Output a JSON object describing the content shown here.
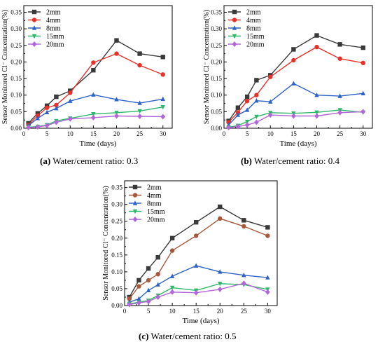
{
  "chart_data": [
    {
      "type": "line",
      "xlabel": "Time (days)",
      "ylabel": "Sensor Monitored  Cl⁻ Concentration(%)",
      "xlim": [
        0,
        32
      ],
      "ylim": [
        0,
        0.37
      ],
      "xticks": [
        0,
        5,
        10,
        15,
        20,
        25,
        30
      ],
      "yticks": [
        0.0,
        0.05,
        0.1,
        0.15,
        0.2,
        0.25,
        0.3,
        0.35
      ],
      "legend_position": "top-left",
      "caption_label": "(a)",
      "caption_text": "Water/cement ratio: 0.3",
      "series": [
        {
          "name": "2mm",
          "x": [
            1,
            3,
            5,
            7,
            10,
            15,
            20,
            25,
            30
          ],
          "values": [
            0.015,
            0.045,
            0.068,
            0.095,
            0.113,
            0.175,
            0.265,
            0.225,
            0.215
          ]
        },
        {
          "name": "4mm",
          "x": [
            1,
            3,
            5,
            7,
            10,
            15,
            20,
            25,
            30
          ],
          "values": [
            0.01,
            0.038,
            0.062,
            0.07,
            0.107,
            0.198,
            0.225,
            0.19,
            0.162
          ]
        },
        {
          "name": "8mm",
          "x": [
            1,
            3,
            5,
            7,
            10,
            15,
            20,
            25,
            30
          ],
          "values": [
            0.008,
            0.03,
            0.048,
            0.06,
            0.082,
            0.101,
            0.087,
            0.076,
            0.088
          ]
        },
        {
          "name": "15mm",
          "x": [
            1,
            3,
            5,
            7,
            10,
            15,
            20,
            25,
            30
          ],
          "values": [
            0.003,
            0.005,
            0.01,
            0.022,
            0.03,
            0.043,
            0.047,
            0.052,
            0.064
          ]
        },
        {
          "name": "20mm",
          "x": [
            1,
            3,
            5,
            7,
            10,
            15,
            20,
            25,
            30
          ],
          "values": [
            0.002,
            0.004,
            0.008,
            0.018,
            0.028,
            0.032,
            0.037,
            0.036,
            0.035
          ]
        }
      ]
    },
    {
      "type": "line",
      "xlabel": "Time (days)",
      "ylabel": "Sensor Monitored  Cl⁻ Concentration(%)",
      "xlim": [
        0,
        32
      ],
      "ylim": [
        0,
        0.37
      ],
      "xticks": [
        0,
        5,
        10,
        15,
        20,
        25,
        30
      ],
      "yticks": [
        0.0,
        0.05,
        0.1,
        0.15,
        0.2,
        0.25,
        0.3,
        0.35
      ],
      "legend_position": "top-left",
      "caption_label": "(b)",
      "caption_text": "Water/cement ratio: 0.4",
      "series": [
        {
          "name": "2mm",
          "x": [
            1,
            3,
            5,
            7,
            10,
            15,
            20,
            25,
            30
          ],
          "values": [
            0.022,
            0.062,
            0.095,
            0.145,
            0.16,
            0.238,
            0.28,
            0.253,
            0.243
          ]
        },
        {
          "name": "4mm",
          "x": [
            1,
            3,
            5,
            7,
            10,
            15,
            20,
            25,
            30
          ],
          "values": [
            0.018,
            0.048,
            0.082,
            0.1,
            0.155,
            0.205,
            0.245,
            0.21,
            0.197
          ]
        },
        {
          "name": "8mm",
          "x": [
            1,
            3,
            5,
            7,
            10,
            15,
            20,
            25,
            30
          ],
          "values": [
            0.01,
            0.04,
            0.055,
            0.083,
            0.08,
            0.135,
            0.1,
            0.097,
            0.105
          ]
        },
        {
          "name": "15mm",
          "x": [
            1,
            3,
            5,
            7,
            10,
            15,
            20,
            25,
            30
          ],
          "values": [
            0.003,
            0.008,
            0.02,
            0.035,
            0.047,
            0.045,
            0.048,
            0.055,
            0.048
          ]
        },
        {
          "name": "20mm",
          "x": [
            1,
            3,
            5,
            7,
            10,
            15,
            20,
            25,
            30
          ],
          "values": [
            0.002,
            0.005,
            0.01,
            0.018,
            0.04,
            0.037,
            0.037,
            0.047,
            0.05
          ]
        }
      ]
    },
    {
      "type": "line",
      "xlabel": "Time (days)",
      "ylabel": "Sensor Monitored  Cl⁻ Concentration(%)",
      "xlim": [
        0,
        32
      ],
      "ylim": [
        0,
        0.37
      ],
      "xticks": [
        0,
        5,
        10,
        15,
        20,
        25,
        30
      ],
      "yticks": [
        0.0,
        0.05,
        0.1,
        0.15,
        0.2,
        0.25,
        0.3,
        0.35
      ],
      "legend_position": "top-left",
      "caption_label": "(c)",
      "caption_text": "Water/cement ratio: 0.5",
      "series": [
        {
          "name": "2mm",
          "x": [
            1,
            3,
            5,
            7,
            10,
            15,
            20,
            25,
            30
          ],
          "values": [
            0.025,
            0.075,
            0.11,
            0.143,
            0.2,
            0.247,
            0.293,
            0.253,
            0.232
          ]
        },
        {
          "name": "4mm",
          "x": [
            1,
            3,
            5,
            7,
            10,
            15,
            20,
            25,
            30
          ],
          "values": [
            0.02,
            0.057,
            0.075,
            0.093,
            0.163,
            0.207,
            0.258,
            0.235,
            0.207
          ]
        },
        {
          "name": "8mm",
          "x": [
            1,
            3,
            5,
            7,
            10,
            15,
            20,
            25,
            30
          ],
          "values": [
            0.01,
            0.02,
            0.045,
            0.062,
            0.087,
            0.118,
            0.1,
            0.09,
            0.083
          ]
        },
        {
          "name": "15mm",
          "x": [
            1,
            3,
            5,
            7,
            10,
            15,
            20,
            25,
            30
          ],
          "values": [
            0.005,
            0.01,
            0.015,
            0.03,
            0.053,
            0.045,
            0.065,
            0.062,
            0.048
          ]
        },
        {
          "name": "20mm",
          "x": [
            1,
            3,
            5,
            7,
            10,
            15,
            20,
            25,
            30
          ],
          "values": [
            0.003,
            0.008,
            0.012,
            0.025,
            0.04,
            0.038,
            0.048,
            0.066,
            0.04
          ]
        }
      ]
    }
  ],
  "series_style": [
    {
      "color": "#3a3a3a",
      "marker": "square"
    },
    {
      "color": "#e8312a",
      "marker": "circle"
    },
    {
      "color": "#2c62c8",
      "marker": "triangle-up"
    },
    {
      "color": "#2fb86a",
      "marker": "triangle-down"
    },
    {
      "color": "#b366d9",
      "marker": "diamond"
    }
  ],
  "series_style_c": [
    {
      "color": "#3a3a3a",
      "marker": "square"
    },
    {
      "color": "#a9583a",
      "marker": "circle"
    },
    {
      "color": "#2c62c8",
      "marker": "triangle-up"
    },
    {
      "color": "#2fb86a",
      "marker": "triangle-down"
    },
    {
      "color": "#b366d9",
      "marker": "diamond"
    }
  ]
}
